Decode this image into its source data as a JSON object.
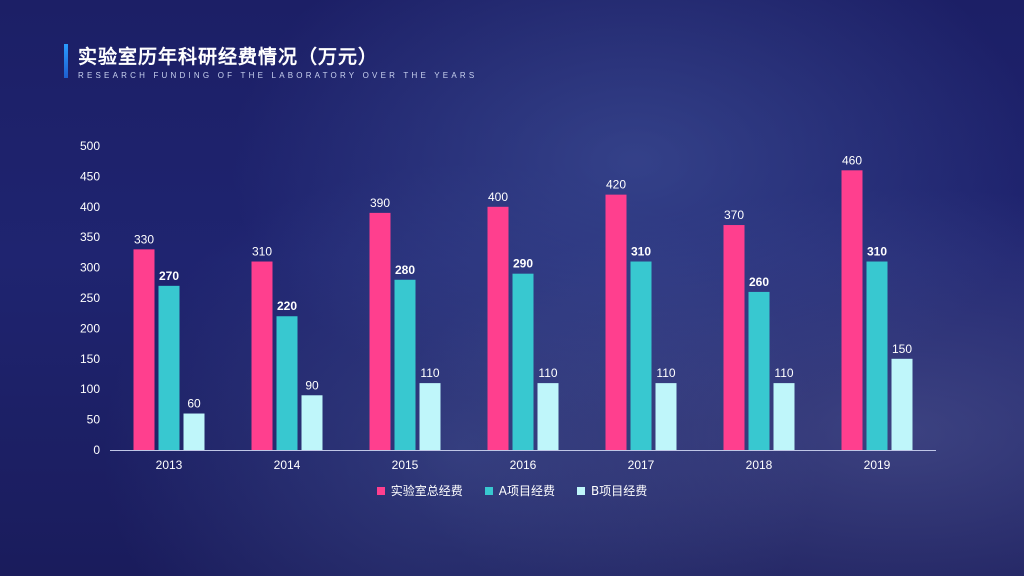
{
  "header": {
    "title": "实验室历年科研经费情况（万元）",
    "subtitle": "RESEARCH FUNDING OF THE LABORATORY OVER THE YEARS"
  },
  "colors": {
    "total": "#ff3f8e",
    "a": "#38c8d0",
    "b": "#bff6fa"
  },
  "chart_data": {
    "type": "bar",
    "title": "实验室历年科研经费情况（万元）",
    "categories": [
      "2013",
      "2014",
      "2015",
      "2016",
      "2017",
      "2018",
      "2019"
    ],
    "series": [
      {
        "name": "实验室总经费",
        "values": [
          330,
          310,
          390,
          400,
          420,
          370,
          460
        ]
      },
      {
        "name": "A项目经费",
        "values": [
          270,
          220,
          280,
          290,
          310,
          260,
          310
        ]
      },
      {
        "name": "B项目经费",
        "values": [
          60,
          90,
          110,
          110,
          110,
          110,
          150
        ]
      }
    ],
    "yticks": [
      0,
      50,
      100,
      150,
      200,
      250,
      300,
      350,
      400,
      450,
      500
    ],
    "ylim": [
      0,
      500
    ],
    "grid": false,
    "legend_position": "bottom"
  }
}
